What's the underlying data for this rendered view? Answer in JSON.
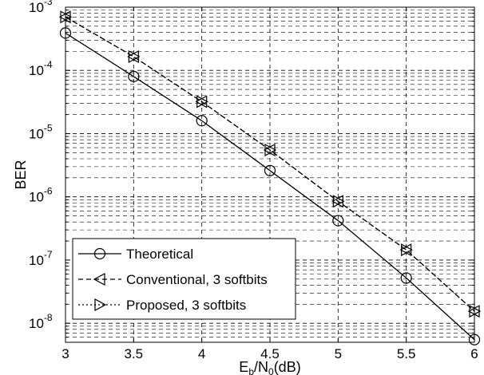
{
  "chart_data": {
    "type": "line",
    "title": "",
    "xlabel": "E_b/N_0(dB)",
    "xlabel_parts": {
      "main": "E",
      "sub1": "b",
      "mid": "/N",
      "sub2": "0",
      "tail": "(dB)"
    },
    "ylabel": "BER",
    "xlim": [
      3,
      6
    ],
    "ylim": [
      5e-09,
      0.001
    ],
    "yscale": "log",
    "grid": "dashed, major and minor",
    "legend_position": "bottom-left",
    "x_ticks": [
      "3",
      "3.5",
      "4",
      "4.5",
      "5",
      "5.5",
      "6"
    ],
    "y_ticks": [
      {
        "base": "10",
        "exp": "-3"
      },
      {
        "base": "10",
        "exp": "-4"
      },
      {
        "base": "10",
        "exp": "-5"
      },
      {
        "base": "10",
        "exp": "-6"
      },
      {
        "base": "10",
        "exp": "-7"
      },
      {
        "base": "10",
        "exp": "-8"
      }
    ],
    "x": [
      3,
      3.5,
      4,
      4.5,
      5,
      5.5,
      6
    ],
    "series": [
      {
        "name": "Theoretical",
        "line_style": "solid",
        "marker": "circle",
        "values": [
          0.00039,
          8e-05,
          1.6e-05,
          2.6e-06,
          4.2e-07,
          5.2e-08,
          5.5e-09
        ]
      },
      {
        "name": "Conventional, 3 softbits",
        "line_style": "dashed",
        "marker": "triangle-left",
        "values": [
          0.0007,
          0.000165,
          3.2e-05,
          5.5e-06,
          8.5e-07,
          1.45e-07,
          1.55e-08
        ]
      },
      {
        "name": "Proposed, 3 softbits",
        "line_style": "dotted",
        "marker": "triangle-right",
        "values": [
          0.0007,
          0.000165,
          3.2e-05,
          5.5e-06,
          8.5e-07,
          1.45e-07,
          1.55e-08
        ]
      }
    ]
  }
}
